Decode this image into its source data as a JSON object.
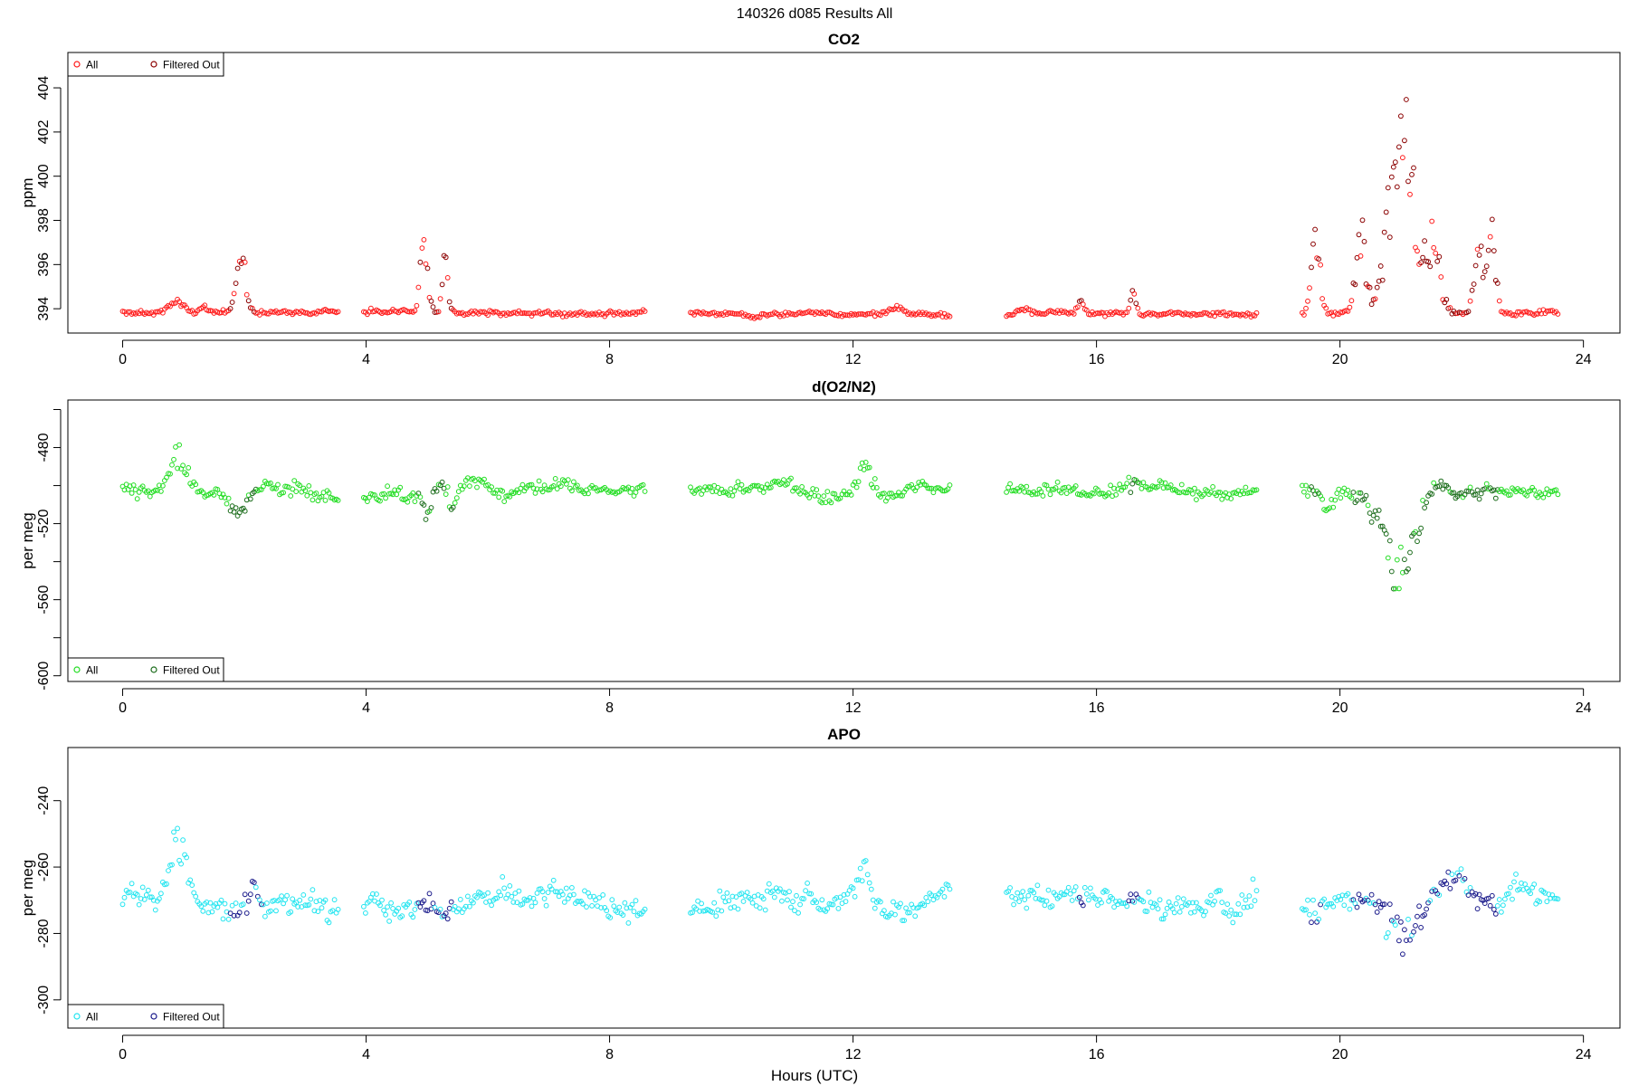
{
  "figure": {
    "title": "140326   d085   Results All",
    "xlabel": "Hours (UTC)"
  },
  "chart_data": [
    {
      "type": "scatter",
      "title": "CO2",
      "xlabel": "Hours (UTC)",
      "ylabel": "ppm",
      "xlim": [
        -0.9,
        24.6
      ],
      "ylim": [
        392.9,
        405.6
      ],
      "x_ticks": [
        0,
        4,
        8,
        12,
        16,
        20,
        24
      ],
      "y_ticks": [
        394,
        396,
        398,
        400,
        402,
        404
      ],
      "legend": {
        "position": "top-left",
        "entries": [
          "All",
          "Filtered Out"
        ]
      },
      "colors": {
        "all": "#ff1a1a",
        "filtered": "#8b0000"
      },
      "gaps": [
        [
          3.55,
          3.95
        ],
        [
          8.6,
          9.3
        ],
        [
          13.6,
          14.5
        ],
        [
          18.65,
          19.35
        ]
      ],
      "series": [
        {
          "name": "All",
          "baseline": 393.8,
          "noise": 0.15,
          "spikes": [
            {
              "x": 0.9,
              "w": 0.2,
              "h": 0.4
            },
            {
              "x": 1.35,
              "w": 0.1,
              "h": 0.3
            },
            {
              "x": 1.95,
              "w": 0.12,
              "h": 2.4
            },
            {
              "x": 4.95,
              "w": 0.08,
              "h": 3.5
            },
            {
              "x": 5.3,
              "w": 0.06,
              "h": 3.0
            },
            {
              "x": 12.7,
              "w": 0.15,
              "h": 0.35
            },
            {
              "x": 14.8,
              "w": 0.12,
              "h": 0.25
            },
            {
              "x": 15.75,
              "w": 0.08,
              "h": 0.6
            },
            {
              "x": 16.6,
              "w": 0.07,
              "h": 0.9
            },
            {
              "x": 19.6,
              "w": 0.1,
              "h": 3.5
            },
            {
              "x": 20.35,
              "w": 0.12,
              "h": 3.5
            },
            {
              "x": 20.85,
              "w": 0.18,
              "h": 5.0
            },
            {
              "x": 21.1,
              "w": 0.18,
              "h": 7.8
            },
            {
              "x": 21.5,
              "w": 0.18,
              "h": 3.5
            },
            {
              "x": 22.3,
              "w": 0.12,
              "h": 3.0
            },
            {
              "x": 22.5,
              "w": 0.08,
              "h": 4.0
            }
          ]
        },
        {
          "name": "Filtered Out",
          "ranges": [
            [
              1.75,
              2.2
            ],
            [
              4.85,
              5.45
            ],
            [
              15.7,
              15.8
            ],
            [
              16.5,
              16.7
            ],
            [
              19.5,
              19.7
            ],
            [
              20.2,
              22.6
            ]
          ]
        }
      ]
    },
    {
      "type": "scatter",
      "title": "d(O2/N2)",
      "xlabel": "Hours (UTC)",
      "ylabel": "per meg",
      "xlim": [
        -0.9,
        24.6
      ],
      "ylim": [
        -603,
        -455
      ],
      "x_ticks": [
        0,
        4,
        8,
        12,
        16,
        20,
        24
      ],
      "y_ticks": [
        -600,
        -560,
        -520,
        -480
      ],
      "y_ticks_unlabeled": [
        -580,
        -540,
        -500,
        -460
      ],
      "legend": {
        "position": "bottom-left",
        "entries": [
          "All",
          "Filtered Out"
        ]
      },
      "colors": {
        "all": "#22dd22",
        "filtered": "#1a6b1a"
      },
      "gaps": [
        [
          3.55,
          3.95
        ],
        [
          8.6,
          9.3
        ],
        [
          13.6,
          14.5
        ],
        [
          18.65,
          19.35
        ]
      ],
      "series": [
        {
          "name": "All",
          "baseline": -502,
          "noise": 5,
          "spikes": [
            {
              "x": 0.9,
              "w": 0.2,
              "h": 17
            },
            {
              "x": 1.9,
              "w": 0.18,
              "h": -12
            },
            {
              "x": 5.0,
              "w": 0.1,
              "h": -15
            },
            {
              "x": 5.4,
              "w": 0.1,
              "h": -12
            },
            {
              "x": 12.2,
              "w": 0.15,
              "h": 12
            },
            {
              "x": 19.8,
              "w": 0.1,
              "h": -13
            },
            {
              "x": 20.55,
              "w": 0.1,
              "h": -12
            },
            {
              "x": 21.0,
              "w": 0.3,
              "h": -48
            },
            {
              "x": 21.6,
              "w": 0.15,
              "h": 7
            }
          ]
        },
        {
          "name": "Filtered Out",
          "ranges": [
            [
              1.75,
              2.2
            ],
            [
              4.85,
              5.45
            ],
            [
              16.5,
              16.7
            ],
            [
              19.5,
              19.7
            ],
            [
              20.2,
              22.6
            ]
          ]
        }
      ]
    },
    {
      "type": "scatter",
      "title": "APO",
      "xlabel": "Hours (UTC)",
      "ylabel": "per meg",
      "xlim": [
        -0.9,
        24.6
      ],
      "ylim": [
        -308.5,
        -224
      ],
      "x_ticks": [
        0,
        4,
        8,
        12,
        16,
        20,
        24
      ],
      "y_ticks": [
        -300,
        -280,
        -260,
        -240
      ],
      "legend": {
        "position": "bottom-left",
        "entries": [
          "All",
          "Filtered Out"
        ]
      },
      "colors": {
        "all": "#22e5f0",
        "filtered": "#1a1a8b"
      },
      "gaps": [
        [
          3.55,
          3.95
        ],
        [
          8.6,
          9.3
        ],
        [
          13.6,
          14.5
        ],
        [
          18.65,
          19.35
        ]
      ],
      "series": [
        {
          "name": "All",
          "baseline": -270,
          "noise": 5,
          "spikes": [
            {
              "x": 0.9,
              "w": 0.2,
              "h": 17
            },
            {
              "x": 1.85,
              "w": 0.15,
              "h": -5
            },
            {
              "x": 2.15,
              "w": 0.1,
              "h": 6
            },
            {
              "x": 12.2,
              "w": 0.15,
              "h": 12
            },
            {
              "x": 19.5,
              "w": 0.15,
              "h": -7
            },
            {
              "x": 21.0,
              "w": 0.3,
              "h": -14
            },
            {
              "x": 21.85,
              "w": 0.25,
              "h": 8
            }
          ]
        },
        {
          "name": "Filtered Out",
          "ranges": [
            [
              1.75,
              2.3
            ],
            [
              4.85,
              5.45
            ],
            [
              15.7,
              15.8
            ],
            [
              16.5,
              16.7
            ],
            [
              19.5,
              19.7
            ],
            [
              20.2,
              22.6
            ]
          ]
        }
      ]
    }
  ]
}
